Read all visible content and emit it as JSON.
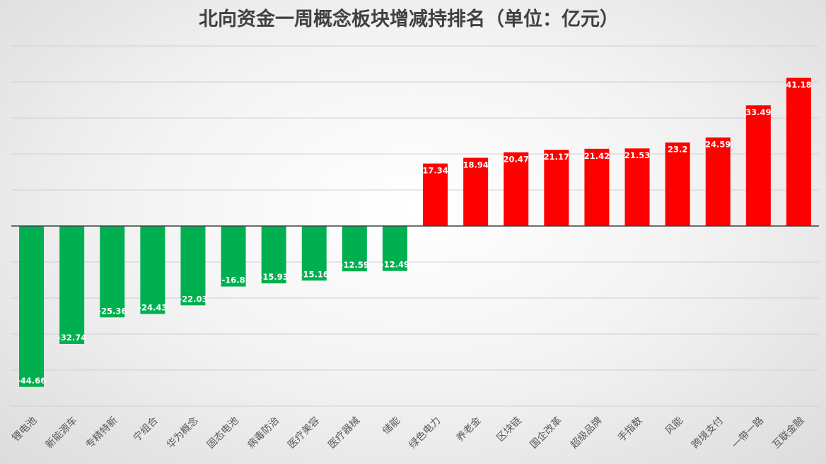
{
  "chart_data": {
    "type": "bar",
    "title": "北向资金一周概念板块增减持排名（单位：亿元）",
    "categories": [
      "锂电池",
      "新能源车",
      "专精特新",
      "宁组合",
      "华为概念",
      "固态电池",
      "病毒防治",
      "医疗美容",
      "医疗器械",
      "储能",
      "绿色电力",
      "养老金",
      "区块链",
      "国企改革",
      "超级品牌",
      "手指数",
      "风能",
      "跨境支付",
      "一带一路",
      "互联金融"
    ],
    "values": [
      -44.66,
      -32.74,
      -25.36,
      -24.43,
      -22.03,
      -16.8,
      -15.93,
      -15.16,
      -12.59,
      -12.49,
      17.34,
      18.94,
      20.47,
      21.17,
      21.42,
      21.53,
      23.2,
      24.59,
      33.49,
      41.18
    ],
    "value_labels": [
      "-44.66",
      "-32.74",
      "-25.36",
      "-24.43",
      "-22.03",
      "-16.8",
      "-15.93",
      "-15.16",
      "-12.59",
      "-12.49",
      "17.34",
      "18.94",
      "20.47",
      "21.17",
      "21.42",
      "21.53",
      "23.2",
      "24.59",
      "33.49",
      "41.18"
    ],
    "ylim": [
      -50,
      50
    ],
    "grid": true,
    "legend": "none",
    "xlabel": "",
    "ylabel": "",
    "colors": {
      "positive": "#ff0000",
      "negative": "#00b050",
      "grid": "#d0d0d0",
      "axis": "#404040"
    }
  }
}
